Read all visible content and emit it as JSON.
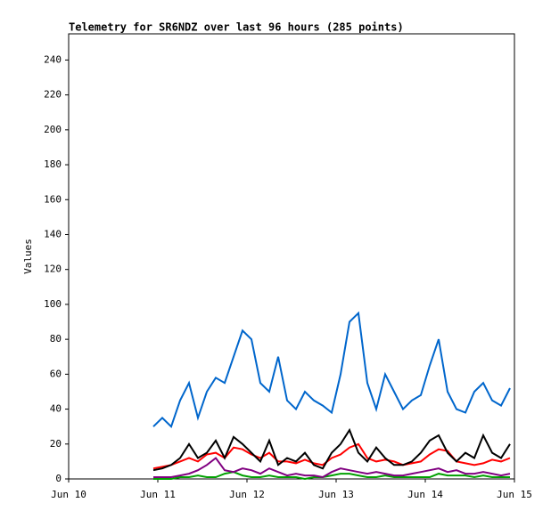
{
  "chart_data": {
    "type": "line",
    "title": "Telemetry for SR6NDZ over last 96 hours (285 points)",
    "y_label": "Values",
    "xlim": [
      10,
      15
    ],
    "xticks": [
      {
        "value": 10,
        "label": "Jun 10"
      },
      {
        "value": 11,
        "label": "Jun 11"
      },
      {
        "value": 12,
        "label": "Jun 12"
      },
      {
        "value": 13,
        "label": "Jun 13"
      },
      {
        "value": 14,
        "label": "Jun 14"
      },
      {
        "value": 15,
        "label": "Jun 15"
      }
    ],
    "ylim": [
      0,
      255
    ],
    "yticks": [
      0,
      20,
      40,
      60,
      80,
      100,
      120,
      140,
      160,
      180,
      200,
      220,
      240
    ],
    "grid": false,
    "x": [
      10.95,
      11.05,
      11.15,
      11.25,
      11.35,
      11.45,
      11.55,
      11.65,
      11.75,
      11.85,
      11.95,
      12.05,
      12.15,
      12.25,
      12.35,
      12.45,
      12.55,
      12.65,
      12.75,
      12.85,
      12.95,
      13.05,
      13.15,
      13.25,
      13.35,
      13.45,
      13.55,
      13.65,
      13.75,
      13.85,
      13.95,
      14.05,
      14.15,
      14.25,
      14.35,
      14.45,
      14.55,
      14.65,
      14.75,
      14.85,
      14.95
    ],
    "series": [
      {
        "color": "#0066cc",
        "values": [
          30,
          35,
          30,
          45,
          55,
          35,
          50,
          58,
          55,
          70,
          85,
          80,
          55,
          50,
          70,
          45,
          40,
          50,
          45,
          42,
          38,
          60,
          90,
          95,
          55,
          40,
          60,
          50,
          40,
          45,
          48,
          65,
          80,
          50,
          40,
          38,
          50,
          55,
          45,
          42,
          52
        ]
      },
      {
        "color": "#ff0000",
        "values": [
          6,
          7,
          8,
          10,
          12,
          10,
          14,
          15,
          12,
          18,
          17,
          14,
          12,
          15,
          10,
          10,
          9,
          11,
          9,
          8,
          12,
          14,
          18,
          20,
          12,
          10,
          11,
          10,
          8,
          9,
          10,
          14,
          17,
          16,
          10,
          9,
          8,
          9,
          11,
          10,
          12
        ]
      },
      {
        "color": "#000000",
        "values": [
          5,
          6,
          8,
          12,
          20,
          12,
          15,
          22,
          12,
          24,
          20,
          15,
          10,
          22,
          8,
          12,
          10,
          15,
          8,
          6,
          15,
          20,
          28,
          15,
          10,
          18,
          12,
          8,
          8,
          10,
          15,
          22,
          25,
          15,
          10,
          15,
          12,
          25,
          15,
          12,
          20
        ]
      },
      {
        "color": "#00a000",
        "values": [
          0,
          0,
          0,
          1,
          1,
          2,
          1,
          1,
          3,
          4,
          2,
          1,
          1,
          2,
          1,
          1,
          1,
          0,
          1,
          1,
          2,
          3,
          3,
          2,
          1,
          1,
          2,
          1,
          1,
          1,
          1,
          1,
          3,
          2,
          2,
          2,
          1,
          2,
          1,
          1,
          1
        ]
      },
      {
        "color": "#800080",
        "values": [
          1,
          1,
          1,
          2,
          3,
          5,
          8,
          12,
          5,
          4,
          6,
          5,
          3,
          6,
          4,
          2,
          3,
          2,
          2,
          1,
          4,
          6,
          5,
          4,
          3,
          4,
          3,
          2,
          2,
          3,
          4,
          5,
          6,
          4,
          5,
          3,
          3,
          4,
          3,
          2,
          3
        ]
      }
    ]
  }
}
